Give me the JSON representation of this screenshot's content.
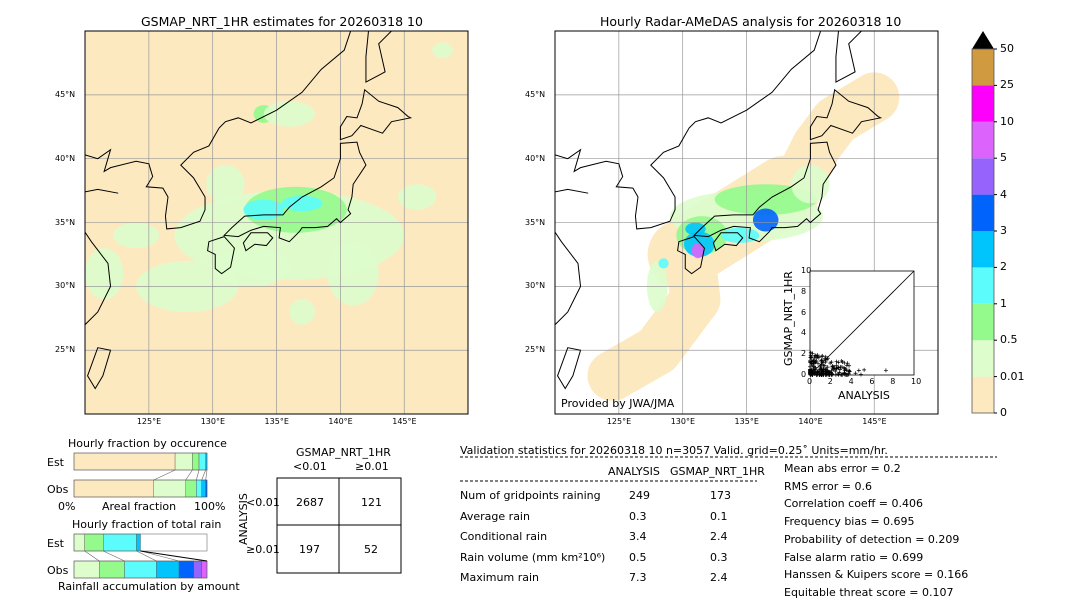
{
  "left_map": {
    "title": "GSMAP_NRT_1HR estimates for 20260318 10"
  },
  "right_map": {
    "title": "Hourly Radar-AMeDAS analysis for 20260318 10",
    "credit": "Provided by JWA/JMA"
  },
  "lat_labels": [
    "45°N",
    "40°N",
    "35°N",
    "30°N",
    "25°N"
  ],
  "lon_labels": [
    "125°E",
    "130°E",
    "135°E",
    "140°E",
    "145°E"
  ],
  "scatter": {
    "xlabel": "ANALYSIS",
    "ylabel": "GSMAP_NRT_1HR",
    "ticks": [
      "0",
      "2",
      "4",
      "6",
      "8",
      "10"
    ],
    "range": [
      0,
      10
    ]
  },
  "colorbar": {
    "labels": [
      "0",
      "0.01",
      "0.5",
      "1",
      "2",
      "3",
      "4",
      "5",
      "10",
      "25",
      "50"
    ],
    "colors": [
      "#fde9c0",
      "#ddfdcc",
      "#94fa8c",
      "#5cfcfc",
      "#00c4fc",
      "#0064fc",
      "#9664fc",
      "#dc64fc",
      "#fc00fc",
      "#d09a40"
    ],
    "extend_color": "#000000"
  },
  "occurrence": {
    "title": "Hourly fraction by occurence",
    "est_label": "Est",
    "obs_label": "Obs",
    "axis_left": "0%",
    "axis_mid": "Areal fraction",
    "axis_right": "100%",
    "est": [
      76,
      13,
      5,
      5,
      1
    ],
    "obs": [
      60,
      24,
      8,
      4,
      3,
      1
    ]
  },
  "total_rain": {
    "title": "Hourly fraction of total rain",
    "est_label": "Est",
    "obs_label": "Obs",
    "footer": "Rainfall accumulation by amount",
    "est": [
      8,
      14,
      25,
      3
    ],
    "obs": [
      19,
      19,
      24,
      17,
      11,
      6,
      4
    ]
  },
  "contingency": {
    "col_title": "GSMAP_NRT_1HR",
    "col_lt": "<0.01",
    "col_ge": "≥0.01",
    "row_title": "ANALYSIS",
    "row_lt": "<0.01",
    "row_ge": "≥0.01",
    "cells": [
      "2687",
      "121",
      "197",
      "52"
    ]
  },
  "stats": {
    "header": "Validation statistics for 20260318 10  n=3057 Valid. grid=0.25˚ Units=mm/hr.",
    "col_analysis": "ANALYSIS",
    "col_gsmap": "GSMAP_NRT_1HR",
    "rows": [
      {
        "label": "Num of gridpoints raining",
        "a": "249",
        "g": "173"
      },
      {
        "label": "Average rain",
        "a": "0.3",
        "g": "0.1"
      },
      {
        "label": "Conditional rain",
        "a": "3.4",
        "g": "2.4"
      },
      {
        "label": "Rain volume (mm km²10⁶)",
        "a": "0.5",
        "g": "0.3"
      },
      {
        "label": "Maximum rain",
        "a": "7.3",
        "g": "2.4"
      }
    ],
    "scores": [
      "Mean abs error =    0.2",
      "RMS error =    0.6",
      "Correlation coeff =  0.406",
      "Frequency bias =  0.695",
      "Probability of detection =  0.209",
      "False alarm ratio =  0.699",
      "Hanssen & Kuipers score =  0.166",
      "Equitable threat score =  0.107"
    ]
  }
}
